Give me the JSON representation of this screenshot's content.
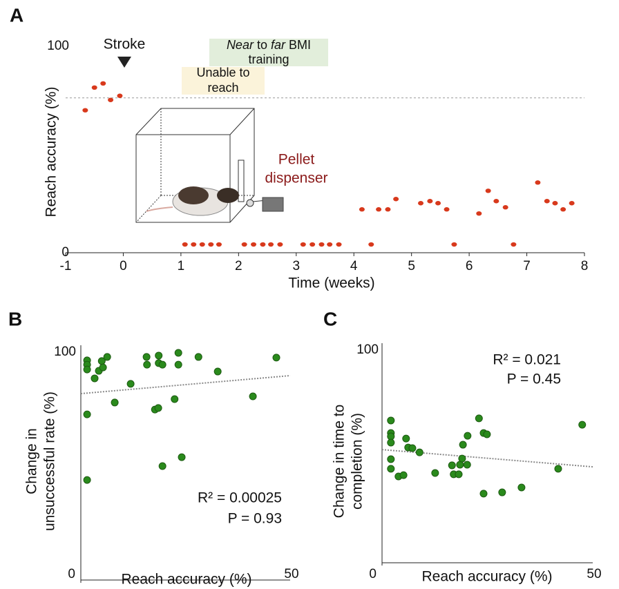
{
  "panel_labels": [
    "A",
    "B",
    "C"
  ],
  "chart_data": [
    {
      "type": "scatter",
      "xlabel": "Time (weeks)",
      "ylabel": [
        "Reach accuracy (%)"
      ],
      "xlim": [
        -1,
        8
      ],
      "ylim": [
        0,
        100
      ],
      "xticks": [
        -1,
        0,
        1,
        2,
        3,
        4,
        5,
        6,
        7,
        8
      ],
      "yticks": [
        0,
        100
      ],
      "color": "#d8391c",
      "reference_line": 75,
      "annotations": {
        "stroke": "Stroke",
        "unable": [
          "Unable to",
          "reach"
        ],
        "training": [
          [
            "Near",
            "to",
            "far",
            "BMI"
          ],
          "training"
        ],
        "inset": [
          "Pellet",
          "dispenser"
        ]
      },
      "x": [
        -0.66,
        -0.5,
        -0.35,
        -0.22,
        -0.06,
        1.07,
        1.22,
        1.37,
        1.52,
        1.66,
        2.1,
        2.26,
        2.42,
        2.56,
        2.72,
        3.12,
        3.28,
        3.44,
        3.58,
        3.74,
        4.14,
        4.3,
        4.43,
        4.59,
        4.73,
        5.16,
        5.32,
        5.46,
        5.61,
        5.74,
        6.17,
        6.33,
        6.47,
        6.63,
        6.77,
        7.19,
        7.35,
        7.49,
        7.63,
        7.78
      ],
      "y": [
        69,
        80,
        82,
        74,
        76,
        4,
        4,
        4,
        4,
        4,
        4,
        4,
        4,
        4,
        4,
        4,
        4,
        4,
        4,
        4,
        21,
        4,
        21,
        21,
        26,
        24,
        25,
        24,
        21,
        4,
        19,
        30,
        25,
        22,
        4,
        34,
        25,
        24,
        21,
        24
      ]
    },
    {
      "type": "scatter",
      "xlabel": "Reach accuracy (%)",
      "ylabel": [
        "Change in",
        "unsuccessful rate (%)"
      ],
      "xlim": [
        0,
        50
      ],
      "ylim": [
        0,
        100
      ],
      "xticks": [
        0,
        50
      ],
      "yticks": [
        100
      ],
      "color": "#2a8a1c",
      "trendline": {
        "x": [
          0,
          50
        ],
        "y": [
          81.8,
          89.7
        ]
      },
      "annotations": [
        "R² = 0.00025",
        "P = 0.93"
      ],
      "x": [
        1.5,
        1.5,
        1.5,
        1.5,
        1.5,
        3.3,
        4.3,
        5.0,
        5.3,
        6.3,
        8.1,
        11.9,
        15.7,
        15.8,
        17.7,
        18.5,
        18.6,
        18.6,
        19.5,
        19.5,
        22.4,
        23.3,
        23.3,
        24.1,
        28.1,
        32.7,
        41.1,
        46.7
      ],
      "y": [
        96.4,
        94.5,
        92.4,
        72.7,
        43.9,
        88.5,
        91.8,
        96.1,
        93.3,
        97.9,
        77.9,
        86.1,
        97.9,
        94.5,
        74.8,
        75.5,
        98.5,
        95.2,
        94.5,
        50,
        79.4,
        99.7,
        94.5,
        53.9,
        97.9,
        91.5,
        80.6,
        97.6
      ]
    },
    {
      "type": "scatter",
      "xlabel": "Reach accuracy (%)",
      "ylabel": [
        "Change in time to",
        "completion (%)"
      ],
      "xlim": [
        0,
        50
      ],
      "ylim": [
        0,
        100
      ],
      "xticks": [
        0,
        50
      ],
      "yticks": [
        100
      ],
      "color": "#2a8a1c",
      "trendline": {
        "x": [
          0,
          50
        ],
        "y": [
          53.2,
          45.1
        ]
      },
      "annotations": [
        "R² = 0.021",
        "P = 0.45"
      ],
      "x": [
        2.1,
        2.1,
        2.1,
        2.1,
        2.1,
        2.1,
        3.9,
        5.1,
        5.7,
        6.2,
        7.2,
        8.9,
        12.6,
        16.6,
        17.0,
        18.2,
        18.5,
        19.0,
        19.2,
        20.2,
        20.3,
        23.0,
        24.1,
        24.1,
        24.9,
        28.5,
        33.1,
        41.8,
        47.5
      ],
      "y": [
        66.9,
        61.0,
        59.4,
        56.5,
        48.7,
        44.2,
        40.6,
        41.2,
        58.4,
        54.2,
        53.9,
        51.9,
        42.2,
        45.8,
        41.6,
        41.6,
        46.1,
        49.0,
        55.5,
        46.1,
        59.7,
        67.9,
        61.0,
        32.5,
        60.4,
        33.1,
        35.4,
        44.2,
        64.9
      ]
    }
  ]
}
